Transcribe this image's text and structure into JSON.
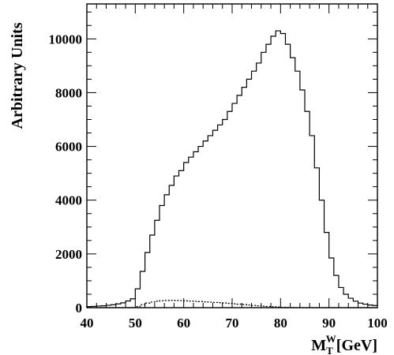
{
  "chart_data": {
    "type": "line",
    "style": "step-histogram",
    "title": "",
    "ylabel": "Arbitrary Units",
    "xlabel": {
      "base": "M",
      "subscript": "T",
      "superscript": "W",
      "unit": "[GeV]"
    },
    "xlim": [
      40,
      100
    ],
    "ylim": [
      0,
      11300
    ],
    "x_ticks": [
      40,
      50,
      60,
      70,
      80,
      90,
      100
    ],
    "y_ticks": [
      0,
      2000,
      4000,
      6000,
      8000,
      10000
    ],
    "bin_width": 1,
    "grid": false,
    "legend": "none",
    "series": [
      {
        "line_style": "solid",
        "color": "#000000",
        "x": [
          40,
          41,
          42,
          43,
          44,
          45,
          46,
          47,
          48,
          49,
          50,
          51,
          52,
          53,
          54,
          55,
          56,
          57,
          58,
          59,
          60,
          61,
          62,
          63,
          64,
          65,
          66,
          67,
          68,
          69,
          70,
          71,
          72,
          73,
          74,
          75,
          76,
          77,
          78,
          79,
          80,
          81,
          82,
          83,
          84,
          85,
          86,
          87,
          88,
          89,
          90,
          91,
          92,
          93,
          94,
          95,
          96,
          97,
          98,
          99
        ],
        "values": [
          40,
          50,
          60,
          70,
          90,
          110,
          140,
          180,
          250,
          330,
          700,
          1350,
          2050,
          2700,
          3250,
          3800,
          4200,
          4550,
          4900,
          5100,
          5400,
          5600,
          5800,
          6000,
          6200,
          6400,
          6600,
          6800,
          7000,
          7300,
          7600,
          7900,
          8200,
          8500,
          8800,
          9100,
          9500,
          9800,
          10100,
          10300,
          10200,
          9800,
          9300,
          8800,
          8100,
          7300,
          6400,
          5200,
          4000,
          2800,
          1850,
          1200,
          750,
          500,
          350,
          240,
          170,
          130,
          100,
          80
        ]
      },
      {
        "line_style": "dotted",
        "color": "#000000",
        "x": [
          40,
          41,
          42,
          43,
          44,
          45,
          46,
          47,
          48,
          49,
          50,
          51,
          52,
          53,
          54,
          55,
          56,
          57,
          58,
          59,
          60,
          61,
          62,
          63,
          64,
          65,
          66,
          67,
          68,
          69,
          70,
          71,
          72,
          73,
          74,
          75,
          76,
          77,
          78,
          79,
          80,
          81,
          82,
          83,
          84,
          85,
          86,
          87,
          88,
          89,
          90,
          91,
          92,
          93,
          94,
          95,
          96,
          97,
          98,
          99
        ],
        "values": [
          0,
          0,
          0,
          0,
          0,
          0,
          0,
          0,
          0,
          5,
          40,
          110,
          170,
          210,
          240,
          260,
          270,
          275,
          270,
          265,
          255,
          245,
          235,
          225,
          215,
          205,
          195,
          185,
          175,
          160,
          145,
          130,
          115,
          100,
          85,
          70,
          55,
          45,
          35,
          25,
          15,
          10,
          5,
          0,
          0,
          0,
          0,
          0,
          0,
          0,
          0,
          0,
          0,
          0,
          0,
          0,
          0,
          0,
          0,
          0
        ]
      }
    ]
  }
}
